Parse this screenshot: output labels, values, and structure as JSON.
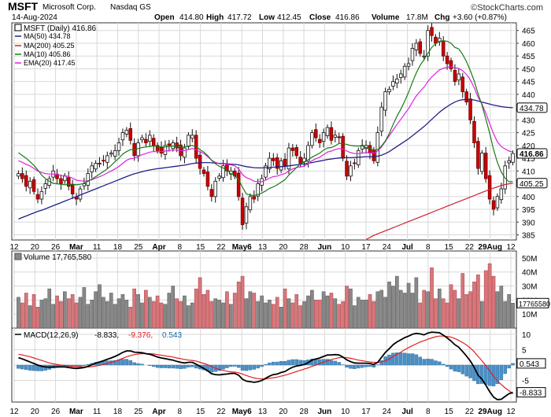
{
  "header": {
    "symbol": "MSFT",
    "company": "Microsoft Corp.",
    "exchange": "Nasdaq GS",
    "date": "14-Aug-2024",
    "watermark": "©StockCharts.com",
    "open_label": "Open",
    "open": "414.80",
    "high_label": "High",
    "high": "417.72",
    "low_label": "Low",
    "low": "412.45",
    "close_label": "Close",
    "close": "416.86",
    "volume_label": "Volume",
    "volume": "17.8M",
    "chg_label": "Chg",
    "chg": "+3.60 (+0.87%)"
  },
  "legend": {
    "price": "MSFT (Daily) 416.86",
    "ma50": "MA(50) 434.78",
    "ma200": "MA(200) 405.25",
    "ma10": "MA(10) 405.86",
    "ema20": "EMA(20) 417.45"
  },
  "volume_legend": "Volume 17,765,580",
  "macd_legend": {
    "name": "MACD(12,26,9)",
    "macd": "-8.833,",
    "signal": "-9.376,",
    "hist": "0.543"
  },
  "colors": {
    "up": "#aaaaaa",
    "down": "#cc0000",
    "vol_up": "#888888",
    "vol_down": "#d9767a",
    "ma50": "#1f1f8a",
    "ma200": "#d0202a",
    "ma10": "#1a7a1a",
    "ema20": "#e020e0",
    "macd": "#000000",
    "signal": "#e02020",
    "hist": "#4a90c8",
    "grid": "#d8d8d8"
  },
  "x_labels": [
    "12",
    "20",
    "26",
    "Mar",
    "11",
    "18",
    "25",
    "Apr",
    "8",
    "15",
    "22",
    "May6",
    "13",
    "20",
    "28",
    "Jun",
    "10",
    "17",
    "24",
    "Jul",
    "8",
    "15",
    "22",
    "29Aug",
    "12"
  ],
  "chart_data": [
    {
      "type": "candlestick",
      "title": "MSFT (Daily)",
      "y_axis_ticks": [
        385,
        390,
        395,
        400,
        405,
        410,
        415,
        420,
        425,
        430,
        435,
        440,
        445,
        450,
        455,
        460,
        465
      ],
      "ylim": [
        383,
        468
      ],
      "value_tags": [
        {
          "value": 434.78,
          "label": "434.78",
          "style": "ma50"
        },
        {
          "value": 416.86,
          "label": "416.86",
          "style": "close"
        },
        {
          "value": 405.25,
          "label": "405.25",
          "style": "ma200"
        }
      ],
      "close_series": [
        409,
        407,
        404,
        406,
        402,
        399,
        402,
        405,
        407,
        410,
        407,
        405,
        408,
        404,
        401,
        399,
        403,
        405,
        409,
        412,
        413,
        413,
        414,
        416,
        417,
        418,
        421,
        425,
        426,
        422,
        416,
        421,
        423,
        421,
        424,
        420,
        418,
        417,
        420,
        420,
        421,
        419,
        416,
        419,
        424,
        424,
        415,
        411,
        409,
        404,
        400,
        406,
        408,
        412,
        410,
        410,
        408,
        400,
        389,
        396,
        400,
        399,
        405,
        407,
        412,
        415,
        414,
        411,
        414,
        412,
        419,
        418,
        416,
        413,
        415,
        420,
        425,
        423,
        421,
        425,
        427,
        422,
        424,
        423,
        415,
        408,
        412,
        413,
        418,
        420,
        420,
        417,
        414,
        425,
        435,
        441,
        442,
        445,
        446,
        448,
        451,
        452,
        458,
        460,
        456,
        455,
        465,
        463,
        460,
        462,
        455,
        452,
        450,
        445,
        448,
        441,
        437,
        430,
        421,
        411,
        417,
        407,
        399,
        395,
        400,
        403,
        412,
        414,
        416.86
      ],
      "ma10": [
        417.2,
        416,
        415,
        413.6,
        412.2,
        410.4,
        408.4,
        407,
        406,
        405.2,
        405,
        404.8,
        404.6,
        404.8,
        404.8,
        404.6,
        404.8,
        405.2,
        406,
        406.8,
        407.8,
        408.8,
        409.8,
        410.8,
        412.2,
        413.6,
        415,
        416.6,
        417.6,
        418.4,
        418.4,
        418.8,
        419.2,
        419.4,
        419.6,
        419.8,
        419.6,
        419.4,
        419.4,
        419.6,
        419.8,
        419.6,
        419.4,
        419.4,
        419.8,
        420,
        419.4,
        418.4,
        417.4,
        416,
        414.2,
        412.8,
        411.8,
        411.2,
        410.2,
        409,
        408.2,
        406.6,
        403.6,
        401,
        400.6,
        400.4,
        400.8,
        401.4,
        402.2,
        403.2,
        403.8,
        404.6,
        405.6,
        406.6,
        408.4,
        409.8,
        411.4,
        412.8,
        413.6,
        414.4,
        415.4,
        416.2,
        417,
        418.2,
        419,
        419.2,
        419.8,
        420.8,
        420.8,
        420.4,
        420,
        419.8,
        419.8,
        419.8,
        419.2,
        418.8,
        418.2,
        418.4,
        419.8,
        421.8,
        424.6,
        428.2,
        431.4,
        434.2,
        437.4,
        440.8,
        444.8,
        448.4,
        451.4,
        453.6,
        456,
        458.4,
        459.8,
        460.8,
        461,
        460.8,
        460,
        458.4,
        457.8,
        455.6,
        452.8,
        449.2,
        445.2,
        440.2,
        435.8,
        430.4,
        424.8,
        418.4,
        413.4,
        409.6,
        407.2,
        405.8,
        405.86
      ],
      "ema20": [
        414,
        413.4,
        412.6,
        412,
        411,
        410,
        409.4,
        409,
        408.8,
        408.8,
        408.6,
        408.2,
        408.2,
        407.8,
        407.2,
        406.4,
        406.2,
        406,
        406.2,
        406.6,
        407.2,
        407.8,
        408.4,
        409.2,
        410,
        410.8,
        411.8,
        413,
        414.2,
        414.8,
        415,
        415.6,
        416.4,
        416.8,
        417.4,
        417.6,
        417.6,
        417.6,
        417.8,
        418,
        418.2,
        418.2,
        418,
        418,
        418.4,
        418.8,
        418.4,
        417.6,
        416.8,
        415.6,
        414.2,
        413.4,
        412.8,
        412.8,
        412.6,
        412.4,
        412,
        410.8,
        408.6,
        407.4,
        406.8,
        406,
        405.8,
        405.8,
        406.4,
        407.2,
        407.8,
        408,
        408.6,
        409,
        410,
        410.8,
        411.4,
        411.6,
        412,
        412.8,
        414,
        414.8,
        415.4,
        416.4,
        417.4,
        417.8,
        418.4,
        418.8,
        418.6,
        417.8,
        417.2,
        416.8,
        416.8,
        417,
        417.2,
        417.2,
        417,
        417.8,
        419.4,
        421.6,
        423.8,
        426,
        428.2,
        430.2,
        432.4,
        434.4,
        437,
        439.4,
        441.2,
        442.8,
        445,
        446.8,
        448.2,
        449.6,
        450.2,
        450.6,
        450.8,
        450.4,
        450.2,
        449.2,
        447.8,
        445.6,
        442.6,
        438.8,
        436.2,
        432.6,
        428.6,
        424.6,
        421.4,
        419.6,
        418.6,
        417.8,
        417.45
      ],
      "ma50": [
        391.2,
        391.8,
        392.4,
        393,
        393.6,
        394.2,
        394.6,
        395.2,
        395.8,
        396.4,
        397,
        397.6,
        398.2,
        398.8,
        399.4,
        400,
        400.6,
        401.2,
        401.8,
        402.4,
        403,
        403.6,
        404.2,
        404.8,
        405.4,
        406,
        406.6,
        407.2,
        407.8,
        408.4,
        408.9,
        409.3,
        409.7,
        410.1,
        410.4,
        410.7,
        410.9,
        411.1,
        411.3,
        411.5,
        411.7,
        411.9,
        412.1,
        412.3,
        412.6,
        412.9,
        413.1,
        413.2,
        413.3,
        413.3,
        413.2,
        413.1,
        413,
        412.9,
        412.8,
        412.7,
        412.6,
        412.4,
        412,
        411.7,
        411.5,
        411.3,
        411.2,
        411.2,
        411.3,
        411.4,
        411.5,
        411.6,
        411.7,
        411.8,
        412,
        412.2,
        412.4,
        412.6,
        412.8,
        413,
        413.3,
        413.6,
        413.9,
        414.2,
        414.5,
        414.7,
        414.9,
        415.1,
        415.2,
        415.2,
        415.2,
        415.3,
        415.4,
        415.5,
        415.6,
        415.6,
        415.6,
        415.8,
        416.2,
        416.8,
        417.6,
        418.6,
        419.6,
        420.6,
        421.6,
        422.6,
        423.8,
        425,
        426.2,
        427.4,
        428.8,
        430.2,
        431.6,
        433,
        434.2,
        435.2,
        436.2,
        437,
        437.6,
        437.9,
        438,
        438,
        437.8,
        437.4,
        437,
        436.6,
        436.2,
        435.8,
        435.5,
        435.2,
        435,
        434.85,
        434.78
      ],
      "ma200": [
        null,
        null,
        null,
        null,
        null,
        null,
        null,
        null,
        null,
        null,
        null,
        null,
        null,
        null,
        null,
        null,
        null,
        null,
        null,
        null,
        null,
        null,
        null,
        null,
        null,
        null,
        null,
        null,
        null,
        null,
        null,
        null,
        null,
        null,
        null,
        null,
        null,
        null,
        null,
        null,
        null,
        null,
        null,
        null,
        null,
        null,
        null,
        null,
        null,
        null,
        null,
        null,
        null,
        null,
        null,
        null,
        null,
        null,
        null,
        null,
        null,
        null,
        null,
        null,
        null,
        null,
        null,
        null,
        null,
        null,
        null,
        null,
        null,
        null,
        null,
        null,
        null,
        null,
        null,
        null,
        null,
        null,
        null,
        null,
        null,
        null,
        null,
        null,
        null,
        null,
        383.2,
        384,
        384.8,
        385.4,
        386,
        386.6,
        387.2,
        387.8,
        388.4,
        389,
        389.6,
        390.2,
        390.8,
        391.4,
        392,
        392.6,
        393.2,
        393.8,
        394.4,
        395,
        395.6,
        396.2,
        396.8,
        397.4,
        398,
        398.6,
        399.2,
        399.8,
        400.4,
        401,
        401.6,
        402.2,
        402.8,
        403.3,
        403.8,
        404.3,
        404.7,
        405,
        405.25
      ],
      "volume_axis": {
        "ticks": [
          "10M",
          "20M",
          "30M",
          "40M",
          "50M"
        ],
        "current_label": "17765580",
        "ylim": [
          0,
          55
        ]
      },
      "volume_series": [
        22,
        18,
        25,
        16,
        24,
        15,
        20,
        21,
        28,
        17,
        23,
        19,
        26,
        21,
        24,
        18,
        22,
        29,
        17,
        20,
        26,
        31,
        22,
        19,
        25,
        17,
        21,
        24,
        20,
        15,
        28,
        24,
        18,
        27,
        22,
        19,
        23,
        18,
        17,
        25,
        30,
        21,
        19,
        23,
        16,
        18,
        28,
        36,
        24,
        27,
        19,
        21,
        20,
        18,
        26,
        17,
        25,
        33,
        37,
        21,
        26,
        25,
        19,
        23,
        18,
        20,
        17,
        22,
        15,
        28,
        21,
        18,
        24,
        16,
        19,
        23,
        27,
        20,
        20,
        26,
        23,
        25,
        21,
        17,
        19,
        30,
        28,
        16,
        22,
        20,
        20,
        24,
        19,
        26,
        27,
        22,
        33,
        30,
        37,
        27,
        25,
        32,
        25,
        36,
        18,
        27,
        26,
        43,
        21,
        28,
        21,
        18,
        31,
        27,
        21,
        39,
        24,
        26,
        33,
        38,
        19,
        41,
        46,
        37,
        26,
        30,
        19,
        24,
        17.8
      ],
      "macd_axis": {
        "ticks": [
          "10",
          "5",
          "0",
          "-5"
        ],
        "ylim": [
          -12,
          12
        ],
        "tags": [
          {
            "value": 0.543,
            "label": "0.543"
          },
          {
            "value": -8.833,
            "label": "-8.833"
          }
        ]
      },
      "macd": [
        2.4,
        2,
        1.5,
        1,
        0.5,
        0,
        -0.4,
        -0.6,
        -0.7,
        -0.6,
        -0.6,
        -0.6,
        -0.6,
        -0.8,
        -1,
        -1.1,
        -1,
        -0.8,
        -0.4,
        0.1,
        0.6,
        1,
        1.4,
        1.9,
        2.3,
        2.8,
        3.4,
        4.1,
        4.6,
        4.6,
        4.2,
        4.1,
        4,
        3.7,
        3.5,
        3.1,
        2.6,
        2.3,
        2.1,
        1.8,
        1.6,
        1.2,
        0.9,
        0.7,
        0.9,
        0.9,
        0.3,
        -0.4,
        -1.1,
        -1.9,
        -2.8,
        -3.1,
        -3.2,
        -3,
        -2.9,
        -2.7,
        -2.7,
        -3.3,
        -4.6,
        -5.2,
        -5.4,
        -5.6,
        -5.4,
        -5,
        -4.3,
        -3.6,
        -3.1,
        -2.9,
        -2.4,
        -2.1,
        -1.3,
        -0.7,
        -0.3,
        -0.1,
        0.2,
        0.8,
        1.6,
        2,
        2.3,
        2.8,
        3.3,
        3.3,
        3.4,
        3.3,
        2.6,
        1.7,
        1.1,
        0.7,
        0.6,
        0.6,
        0.6,
        0.5,
        0.2,
        0.9,
        2.5,
        4.1,
        5.3,
        6.6,
        7.5,
        8.2,
        8.9,
        9.4,
        10,
        10.3,
        10.1,
        9.8,
        10.4,
        10.7,
        10.6,
        10.5,
        9.7,
        8.8,
        7.8,
        6.6,
        5.8,
        4.4,
        2.9,
        1.3,
        -0.8,
        -3.3,
        -4.6,
        -6.5,
        -8.6,
        -10.4,
        -11.2,
        -11.1,
        -10.2,
        -9.3,
        -8.833
      ],
      "signal": [
        3.5,
        3.3,
        3,
        2.7,
        2.3,
        1.9,
        1.5,
        1.1,
        0.7,
        0.4,
        0.2,
        0,
        -0.1,
        -0.3,
        -0.4,
        -0.5,
        -0.6,
        -0.6,
        -0.6,
        -0.5,
        -0.3,
        -0.1,
        0.2,
        0.5,
        0.9,
        1.3,
        1.7,
        2.2,
        2.7,
        3.1,
        3.4,
        3.6,
        3.7,
        3.7,
        3.7,
        3.6,
        3.4,
        3.2,
        3,
        2.8,
        2.6,
        2.3,
        2.1,
        1.8,
        1.6,
        1.5,
        1.3,
        0.9,
        0.5,
        0.1,
        -0.5,
        -1,
        -1.4,
        -1.7,
        -2,
        -2.2,
        -2.3,
        -2.5,
        -2.9,
        -3.4,
        -3.8,
        -4.2,
        -4.4,
        -4.5,
        -4.5,
        -4.3,
        -4.1,
        -3.9,
        -3.6,
        -3.3,
        -2.9,
        -2.5,
        -2.1,
        -1.7,
        -1.3,
        -0.9,
        -0.4,
        0,
        0.5,
        0.9,
        1.4,
        1.8,
        2.1,
        2.4,
        2.5,
        2.4,
        2.2,
        1.9,
        1.6,
        1.4,
        1.2,
        1,
        0.9,
        0.8,
        1,
        1.4,
        2,
        2.7,
        3.5,
        4.2,
        5,
        5.7,
        6.3,
        6.9,
        7.5,
        7.9,
        8.4,
        8.8,
        9.2,
        9.4,
        9.4,
        9.3,
        9.1,
        8.6,
        8,
        7.3,
        6.5,
        5.5,
        4.3,
        2.8,
        1.4,
        -0.2,
        -1.9,
        -3.6,
        -5.1,
        -6.3,
        -7.4,
        -8.3,
        -9.376
      ]
    }
  ]
}
